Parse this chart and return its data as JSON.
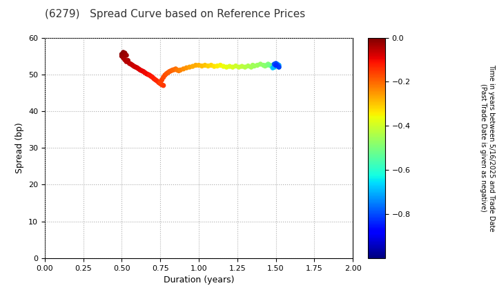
{
  "title": "(6279)   Spread Curve based on Reference Prices",
  "xlabel": "Duration (years)",
  "ylabel": "Spread (bp)",
  "xlim": [
    0.0,
    2.0
  ],
  "ylim": [
    0,
    60
  ],
  "xticks": [
    0.0,
    0.25,
    0.5,
    0.75,
    1.0,
    1.25,
    1.5,
    1.75,
    2.0
  ],
  "yticks": [
    0,
    10,
    20,
    30,
    40,
    50,
    60
  ],
  "colorbar_label_line1": "Time in years between 5/16/2025 and Trade Date",
  "colorbar_label_line2": "(Past Trade Date is given as negative)",
  "cbar_vmin": -1.0,
  "cbar_vmax": 0.0,
  "cbar_ticks": [
    0.0,
    -0.2,
    -0.4,
    -0.6,
    -0.8
  ],
  "points": [
    [
      0.5,
      55.5,
      -0.01
    ],
    [
      0.51,
      56.0,
      -0.01
    ],
    [
      0.52,
      55.8,
      -0.02
    ],
    [
      0.5,
      55.0,
      -0.02
    ],
    [
      0.51,
      54.5,
      -0.03
    ],
    [
      0.53,
      55.2,
      -0.03
    ],
    [
      0.52,
      54.0,
      -0.04
    ],
    [
      0.54,
      53.8,
      -0.04
    ],
    [
      0.53,
      53.5,
      -0.05
    ],
    [
      0.55,
      53.0,
      -0.05
    ],
    [
      0.56,
      52.8,
      -0.06
    ],
    [
      0.57,
      52.5,
      -0.06
    ],
    [
      0.58,
      52.2,
      -0.07
    ],
    [
      0.59,
      52.0,
      -0.07
    ],
    [
      0.6,
      51.8,
      -0.07
    ],
    [
      0.61,
      51.5,
      -0.08
    ],
    [
      0.62,
      51.2,
      -0.08
    ],
    [
      0.63,
      51.0,
      -0.09
    ],
    [
      0.64,
      50.8,
      -0.09
    ],
    [
      0.65,
      50.5,
      -0.1
    ],
    [
      0.66,
      50.2,
      -0.1
    ],
    [
      0.67,
      50.0,
      -0.1
    ],
    [
      0.68,
      49.8,
      -0.11
    ],
    [
      0.69,
      49.5,
      -0.11
    ],
    [
      0.7,
      49.2,
      -0.12
    ],
    [
      0.71,
      48.8,
      -0.12
    ],
    [
      0.72,
      48.5,
      -0.13
    ],
    [
      0.73,
      48.2,
      -0.13
    ],
    [
      0.74,
      47.8,
      -0.14
    ],
    [
      0.75,
      47.5,
      -0.14
    ],
    [
      0.76,
      47.2,
      -0.15
    ],
    [
      0.77,
      47.0,
      -0.15
    ],
    [
      0.75,
      47.8,
      -0.16
    ],
    [
      0.76,
      48.5,
      -0.16
    ],
    [
      0.77,
      49.2,
      -0.17
    ],
    [
      0.78,
      49.8,
      -0.17
    ],
    [
      0.79,
      50.2,
      -0.18
    ],
    [
      0.8,
      50.5,
      -0.18
    ],
    [
      0.81,
      50.8,
      -0.19
    ],
    [
      0.82,
      51.0,
      -0.19
    ],
    [
      0.83,
      51.2,
      -0.2
    ],
    [
      0.84,
      51.3,
      -0.2
    ],
    [
      0.85,
      51.5,
      -0.21
    ],
    [
      0.86,
      51.2,
      -0.22
    ],
    [
      0.87,
      51.0,
      -0.22
    ],
    [
      0.88,
      51.2,
      -0.23
    ],
    [
      0.9,
      51.5,
      -0.24
    ],
    [
      0.92,
      51.8,
      -0.25
    ],
    [
      0.94,
      52.0,
      -0.26
    ],
    [
      0.96,
      52.2,
      -0.27
    ],
    [
      0.98,
      52.5,
      -0.27
    ],
    [
      1.0,
      52.5,
      -0.28
    ],
    [
      1.02,
      52.3,
      -0.29
    ],
    [
      1.04,
      52.5,
      -0.3
    ],
    [
      1.06,
      52.3,
      -0.31
    ],
    [
      1.08,
      52.5,
      -0.32
    ],
    [
      1.1,
      52.2,
      -0.33
    ],
    [
      1.12,
      52.3,
      -0.34
    ],
    [
      1.14,
      52.5,
      -0.35
    ],
    [
      1.16,
      52.2,
      -0.36
    ],
    [
      1.18,
      52.0,
      -0.37
    ],
    [
      1.2,
      52.2,
      -0.38
    ],
    [
      1.22,
      52.0,
      -0.39
    ],
    [
      1.24,
      52.3,
      -0.4
    ],
    [
      1.26,
      52.0,
      -0.41
    ],
    [
      1.28,
      52.2,
      -0.42
    ],
    [
      1.3,
      52.0,
      -0.43
    ],
    [
      1.32,
      52.3,
      -0.44
    ],
    [
      1.34,
      52.0,
      -0.45
    ],
    [
      1.35,
      52.5,
      -0.45
    ],
    [
      1.36,
      52.3,
      -0.46
    ],
    [
      1.38,
      52.5,
      -0.46
    ],
    [
      1.4,
      52.8,
      -0.47
    ],
    [
      1.42,
      52.5,
      -0.48
    ],
    [
      1.43,
      52.3,
      -0.48
    ],
    [
      1.44,
      52.5,
      -0.49
    ],
    [
      1.45,
      52.8,
      -0.5
    ],
    [
      1.46,
      52.5,
      -0.51
    ],
    [
      1.47,
      52.3,
      -0.52
    ],
    [
      1.48,
      52.5,
      -0.53
    ],
    [
      1.49,
      52.0,
      -0.54
    ],
    [
      1.5,
      52.3,
      -0.54
    ],
    [
      1.51,
      52.5,
      -0.55
    ],
    [
      1.52,
      52.0,
      -0.56
    ],
    [
      1.48,
      51.8,
      -0.68
    ],
    [
      1.49,
      52.0,
      -0.69
    ],
    [
      1.5,
      52.5,
      -0.7
    ],
    [
      1.51,
      52.8,
      -0.71
    ],
    [
      1.52,
      52.5,
      -0.72
    ],
    [
      1.49,
      52.8,
      -0.79
    ],
    [
      1.5,
      53.0,
      -0.8
    ],
    [
      1.51,
      52.5,
      -0.81
    ],
    [
      1.52,
      52.0,
      -0.82
    ],
    [
      1.5,
      52.5,
      -0.83
    ]
  ],
  "background_color": "#ffffff",
  "grid_color": "#aaaaaa",
  "marker_size": 18
}
